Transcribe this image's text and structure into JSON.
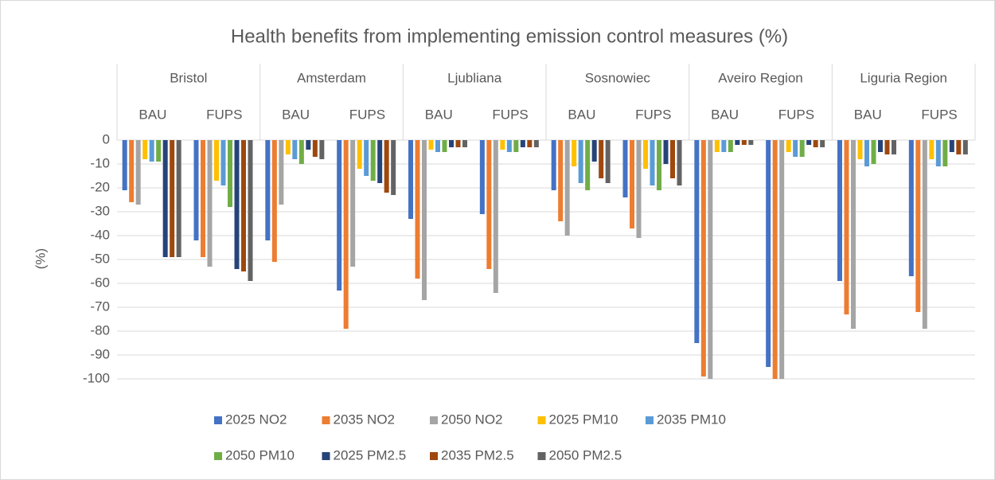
{
  "chart_data": {
    "type": "bar",
    "title": "Health benefits from implementing emission control measures (%)",
    "y_label": "(%)",
    "category_groups": [
      "Bristol",
      "Amsterdam",
      "Ljubliana",
      "Sosnowiec",
      "Aveiro Region",
      "Liguria Region"
    ],
    "categories": [
      "BAU",
      "FUPS",
      "BAU",
      "FUPS",
      "BAU",
      "FUPS",
      "BAU",
      "FUPS",
      "BAU",
      "FUPS",
      "BAU",
      "FUPS"
    ],
    "ylim": [
      -100,
      0
    ],
    "yticks": [
      0,
      -10,
      -20,
      -30,
      -40,
      -50,
      -60,
      -70,
      -80,
      -90,
      -100
    ],
    "grid": true,
    "legend": "bottom",
    "series": [
      {
        "name": "2025 NO2",
        "color": "#4472c4",
        "values": [
          -21,
          -42,
          -42,
          -63,
          -33,
          -31,
          -21,
          -24,
          -85,
          -95,
          -59,
          -57
        ]
      },
      {
        "name": "2035 NO2",
        "color": "#ed7d31",
        "values": [
          -26,
          -49,
          -51,
          -79,
          -58,
          -54,
          -34,
          -37,
          -99,
          -100,
          -73,
          -72
        ]
      },
      {
        "name": "2050 NO2",
        "color": "#a5a5a5",
        "values": [
          -27,
          -53,
          -27,
          -53,
          -67,
          -64,
          -40,
          -41,
          -100,
          -100,
          -79,
          -79
        ]
      },
      {
        "name": "2025 PM10",
        "color": "#ffc000",
        "values": [
          -8,
          -17,
          -6,
          -12,
          -4,
          -4,
          -11,
          -12,
          -5,
          -5,
          -8,
          -8
        ]
      },
      {
        "name": "2035 PM10",
        "color": "#5b9bd5",
        "values": [
          -9,
          -19,
          -8,
          -15,
          -5,
          -5,
          -18,
          -19,
          -5,
          -7,
          -11,
          -11
        ]
      },
      {
        "name": "2050 PM10",
        "color": "#70ad47",
        "values": [
          -9,
          -28,
          -10,
          -17,
          -5,
          -5,
          -21,
          -21,
          -5,
          -7,
          -10,
          -11
        ]
      },
      {
        "name": "2025 PM2.5",
        "color": "#264478",
        "values": [
          -49,
          -54,
          -4,
          -18,
          -3,
          -3,
          -9,
          -10,
          -2,
          -2,
          -5,
          -5
        ]
      },
      {
        "name": "2035 PM2.5",
        "color": "#9e480e",
        "values": [
          -49,
          -55,
          -7,
          -22,
          -3,
          -3,
          -16,
          -16,
          -2,
          -3,
          -6,
          -6
        ]
      },
      {
        "name": "2050 PM2.5",
        "color": "#636363",
        "values": [
          -49,
          -59,
          -8,
          -23,
          -3,
          -3,
          -18,
          -19,
          -2,
          -3,
          -6,
          -6
        ]
      }
    ]
  }
}
